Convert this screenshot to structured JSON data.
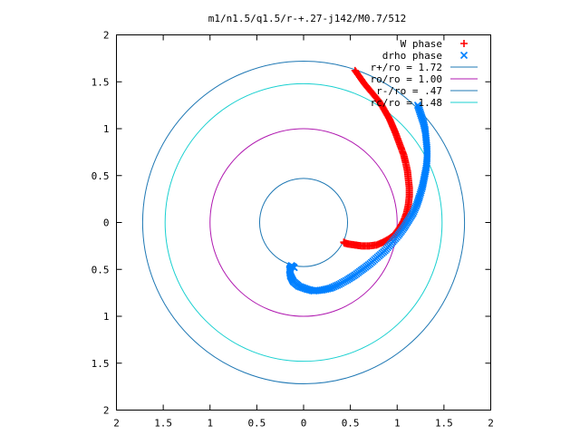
{
  "chart_data": {
    "type": "scatter",
    "title": "m1/n1.5/q1.5/r-+.27-j142/M0.7/512",
    "xlabel": "",
    "ylabel": "",
    "xlim": [
      -2,
      2
    ],
    "ylim": [
      -2,
      2
    ],
    "x_tick_labels": [
      "2",
      "1.5",
      "1",
      "0.5",
      "0",
      "0.5",
      "1",
      "1.5",
      "2"
    ],
    "y_tick_labels": [
      "2",
      "1.5",
      "1",
      "0.5",
      "0",
      "0.5",
      "1",
      "1.5",
      "2"
    ],
    "x_tick_values": [
      -2,
      -1.5,
      -1,
      -0.5,
      0,
      0.5,
      1,
      1.5,
      2
    ],
    "y_tick_values": [
      2,
      1.5,
      1,
      0.5,
      0,
      -0.5,
      -1,
      -1.5,
      -2
    ],
    "grid": false,
    "legend_position": "top-right",
    "series": [
      {
        "name": "W phase",
        "kind": "points",
        "marker": "+",
        "color": "#ff0000",
        "x": [
          0.55,
          0.6,
          0.65,
          0.7,
          0.75,
          0.8,
          0.84,
          0.88,
          0.92,
          0.95,
          0.98,
          1.01,
          1.04,
          1.07,
          1.09,
          1.11,
          1.12,
          1.13,
          1.13,
          1.12,
          1.1,
          1.07,
          1.03,
          0.98,
          0.92,
          0.85,
          0.78,
          0.7,
          0.62,
          0.55,
          0.48,
          0.44,
          0.43
        ],
        "y": [
          1.62,
          1.55,
          1.48,
          1.42,
          1.36,
          1.3,
          1.24,
          1.17,
          1.1,
          1.03,
          0.96,
          0.88,
          0.8,
          0.72,
          0.64,
          0.55,
          0.46,
          0.37,
          0.28,
          0.19,
          0.1,
          0.02,
          -0.05,
          -0.12,
          -0.17,
          -0.21,
          -0.24,
          -0.25,
          -0.25,
          -0.24,
          -0.23,
          -0.22,
          -0.21
        ]
      },
      {
        "name": "drho phase",
        "kind": "points",
        "marker": "x",
        "color": "#0080ff",
        "x": [
          1.22,
          1.25,
          1.28,
          1.3,
          1.31,
          1.32,
          1.32,
          1.31,
          1.29,
          1.27,
          1.24,
          1.21,
          1.17,
          1.12,
          1.07,
          1.01,
          0.94,
          0.87,
          0.79,
          0.71,
          0.63,
          0.55,
          0.47,
          0.38,
          0.29,
          0.2,
          0.11,
          0.03,
          -0.05,
          -0.11,
          -0.14,
          -0.15,
          -0.13,
          -0.1
        ],
        "y": [
          1.25,
          1.16,
          1.07,
          0.98,
          0.88,
          0.78,
          0.68,
          0.58,
          0.48,
          0.38,
          0.28,
          0.19,
          0.1,
          0.02,
          -0.06,
          -0.14,
          -0.22,
          -0.3,
          -0.37,
          -0.44,
          -0.5,
          -0.56,
          -0.61,
          -0.66,
          -0.7,
          -0.72,
          -0.73,
          -0.71,
          -0.68,
          -0.63,
          -0.57,
          -0.5,
          -0.46,
          -0.48
        ]
      },
      {
        "name": "r+/ro = 1.72",
        "kind": "circle",
        "radius": 1.72,
        "color": "#1f78b4"
      },
      {
        "name": "ro/ro = 1.00",
        "kind": "circle",
        "radius": 1.0,
        "color": "#b019b0"
      },
      {
        "name": "r-/ro = .47",
        "kind": "circle",
        "radius": 0.47,
        "color": "#1f78b4"
      },
      {
        "name": "rc/ro = 1.48",
        "kind": "circle",
        "radius": 1.48,
        "color": "#19d0d0"
      }
    ]
  }
}
